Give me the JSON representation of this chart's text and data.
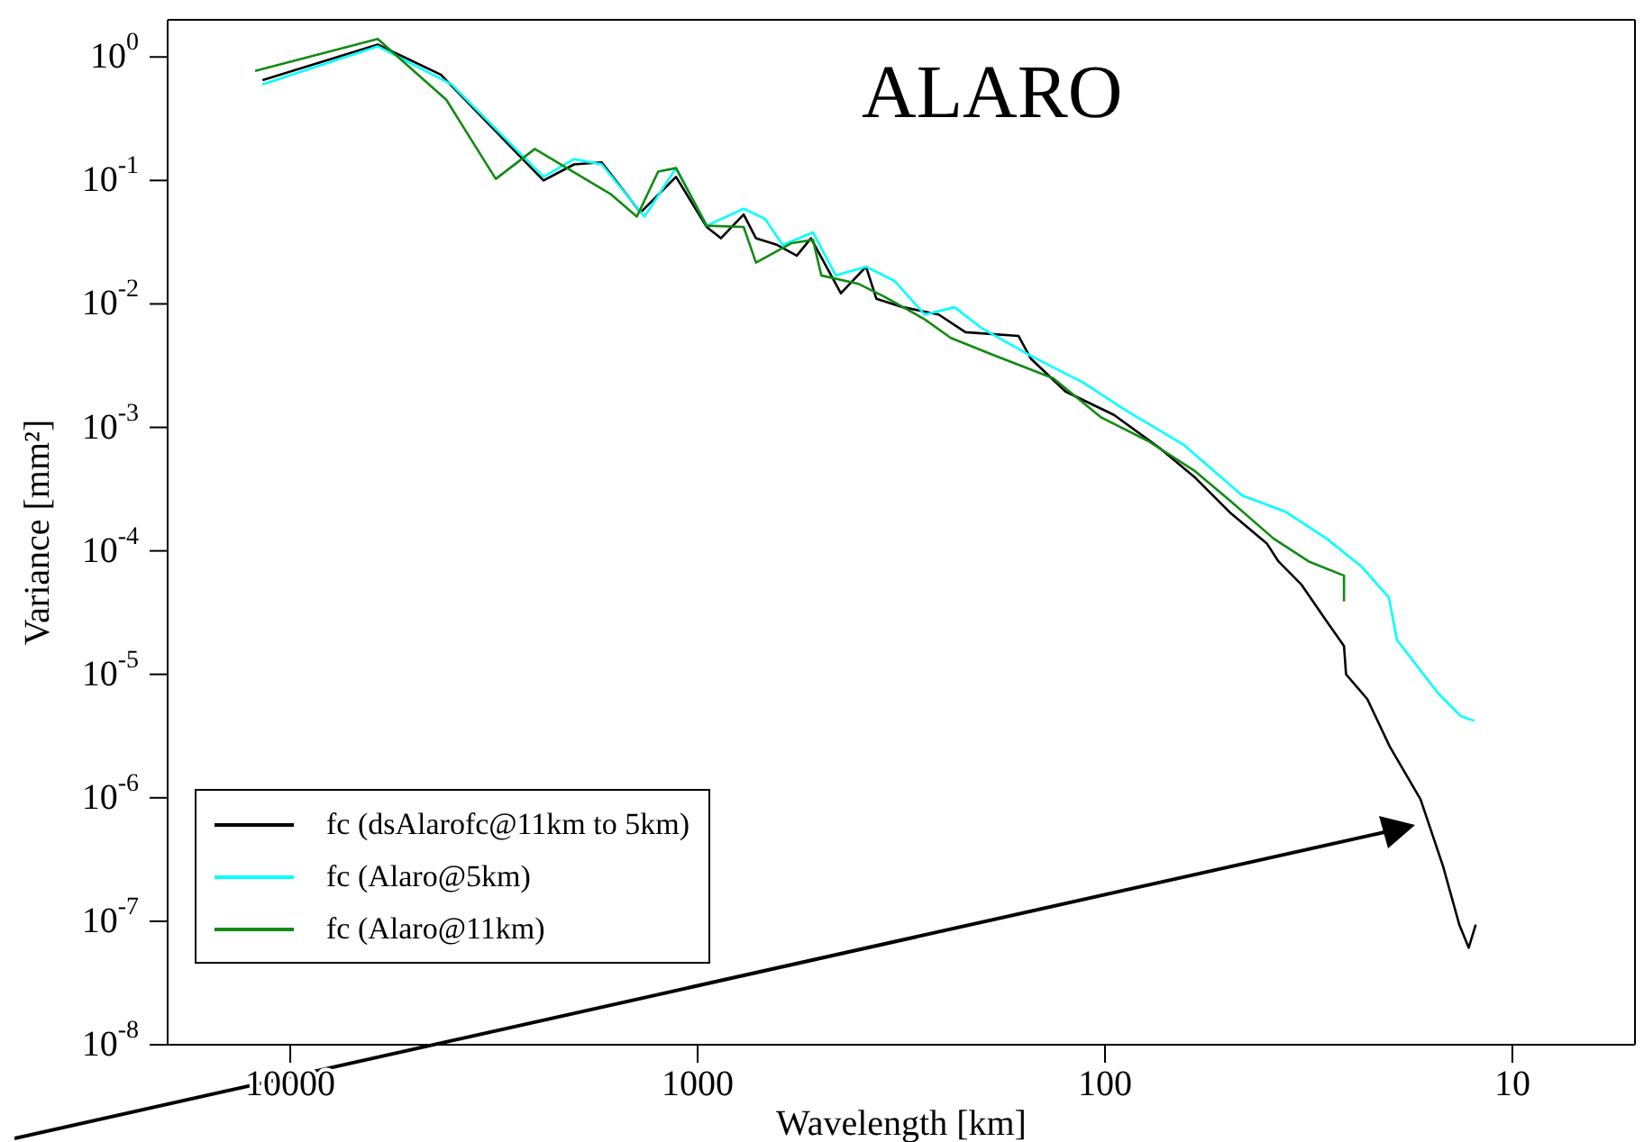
{
  "chart_data": {
    "type": "line",
    "xlabel": "Wavelength [km]",
    "ylabel": "Variance [mm²]",
    "annotations": [
      "ALARO"
    ],
    "log": "xy",
    "legend": "bottom left",
    "xlim": [
      20000,
      5
    ],
    "xticks": [
      10000,
      1000,
      100,
      10
    ],
    "ylim": [
      1e-08,
      2
    ],
    "yticks": [
      {
        "value": 1e-08,
        "label": "10$^{-8}$"
      },
      {
        "value": 1e-07,
        "label": "10$^{-7}$"
      },
      {
        "value": 1e-06,
        "label": "10$^{-6}$"
      },
      {
        "value": 1e-05,
        "label": "10$^{-5}$"
      },
      {
        "value": 0.0001,
        "label": "10$^{-4}$"
      },
      {
        "value": 0.001,
        "label": "10$^{-3}$"
      },
      {
        "value": 0.01,
        "label": "10$^{-2}$"
      },
      {
        "value": 0.1,
        "label": "10$^{-1}$"
      },
      {
        "value": 1,
        "label": "10$^{0}$"
      }
    ],
    "series": [
      {
        "name": "fc (dsAlarofc@11km to 5km)",
        "color": "#000000",
        "x": [
          11700,
          6100,
          4270,
          2770,
          2390,
          2010,
          1720,
          1380,
          1130,
          950,
          877,
          771,
          719,
          637,
          571,
          527,
          445,
          386,
          364,
          313,
          256,
          220,
          163,
          152,
          125,
          95,
          73,
          60,
          49,
          40,
          37.5,
          32.9,
          28.6,
          25.9,
          25.6,
          22.7,
          20,
          16.8,
          14.8,
          13.5,
          12.8,
          12.3
        ],
        "values": [
          0.65,
          1.26,
          0.72,
          0.165,
          0.1,
          0.135,
          0.14,
          0.055,
          0.107,
          0.042,
          0.034,
          0.053,
          0.034,
          0.03,
          0.0246,
          0.034,
          0.0122,
          0.02,
          0.011,
          0.0094,
          0.0082,
          0.0059,
          0.0055,
          0.0036,
          0.00195,
          0.00126,
          0.00067,
          0.00039,
          0.0002,
          0.000114,
          8.2e-05,
          5.3e-05,
          2.7e-05,
          1.7e-05,
          1e-05,
          6.3e-06,
          2.6e-06,
          9.7e-07,
          2.8e-07,
          9.4e-08,
          6.1e-08,
          9.4e-08
        ]
      },
      {
        "name": "fc (Alaro@5km)",
        "color": "#00ffff",
        "x": [
          11700,
          6100,
          4020,
          2390,
          2010,
          1720,
          1350,
          1130,
          950,
          771,
          684,
          618,
          521,
          458,
          386,
          329,
          277,
          234,
          200,
          152,
          113,
          90,
          64,
          46,
          36,
          28.6,
          23.4,
          20.1,
          19.2,
          15.2,
          13.4,
          12.4
        ],
        "values": [
          0.6,
          1.22,
          0.6,
          0.107,
          0.149,
          0.135,
          0.051,
          0.126,
          0.043,
          0.059,
          0.049,
          0.03,
          0.038,
          0.017,
          0.02,
          0.0154,
          0.0082,
          0.0094,
          0.0063,
          0.0038,
          0.0023,
          0.00141,
          0.00072,
          0.00028,
          0.000207,
          0.000126,
          7.4e-05,
          4.2e-05,
          1.9e-05,
          7e-06,
          4.6e-06,
          4.2e-06
        ]
      },
      {
        "name": "fc (Alaro@11km)",
        "color": "#138a13",
        "x": [
          12200,
          6100,
          4140,
          3130,
          2510,
          1630,
          1410,
          1250,
          1130,
          950,
          771,
          719,
          589,
          521,
          497,
          402,
          349,
          277,
          239,
          186,
          134,
          102,
          78,
          60,
          49,
          38.6,
          31.6,
          25.9,
          25.9
        ],
        "values": [
          0.77,
          1.4,
          0.45,
          0.103,
          0.18,
          0.077,
          0.051,
          0.118,
          0.126,
          0.043,
          0.042,
          0.0216,
          0.031,
          0.033,
          0.017,
          0.0145,
          0.0115,
          0.0075,
          0.0053,
          0.0038,
          0.0025,
          0.0012,
          0.00077,
          0.00044,
          0.00025,
          0.000126,
          8.2e-05,
          6.3e-05,
          3.9e-05
        ]
      }
    ]
  }
}
